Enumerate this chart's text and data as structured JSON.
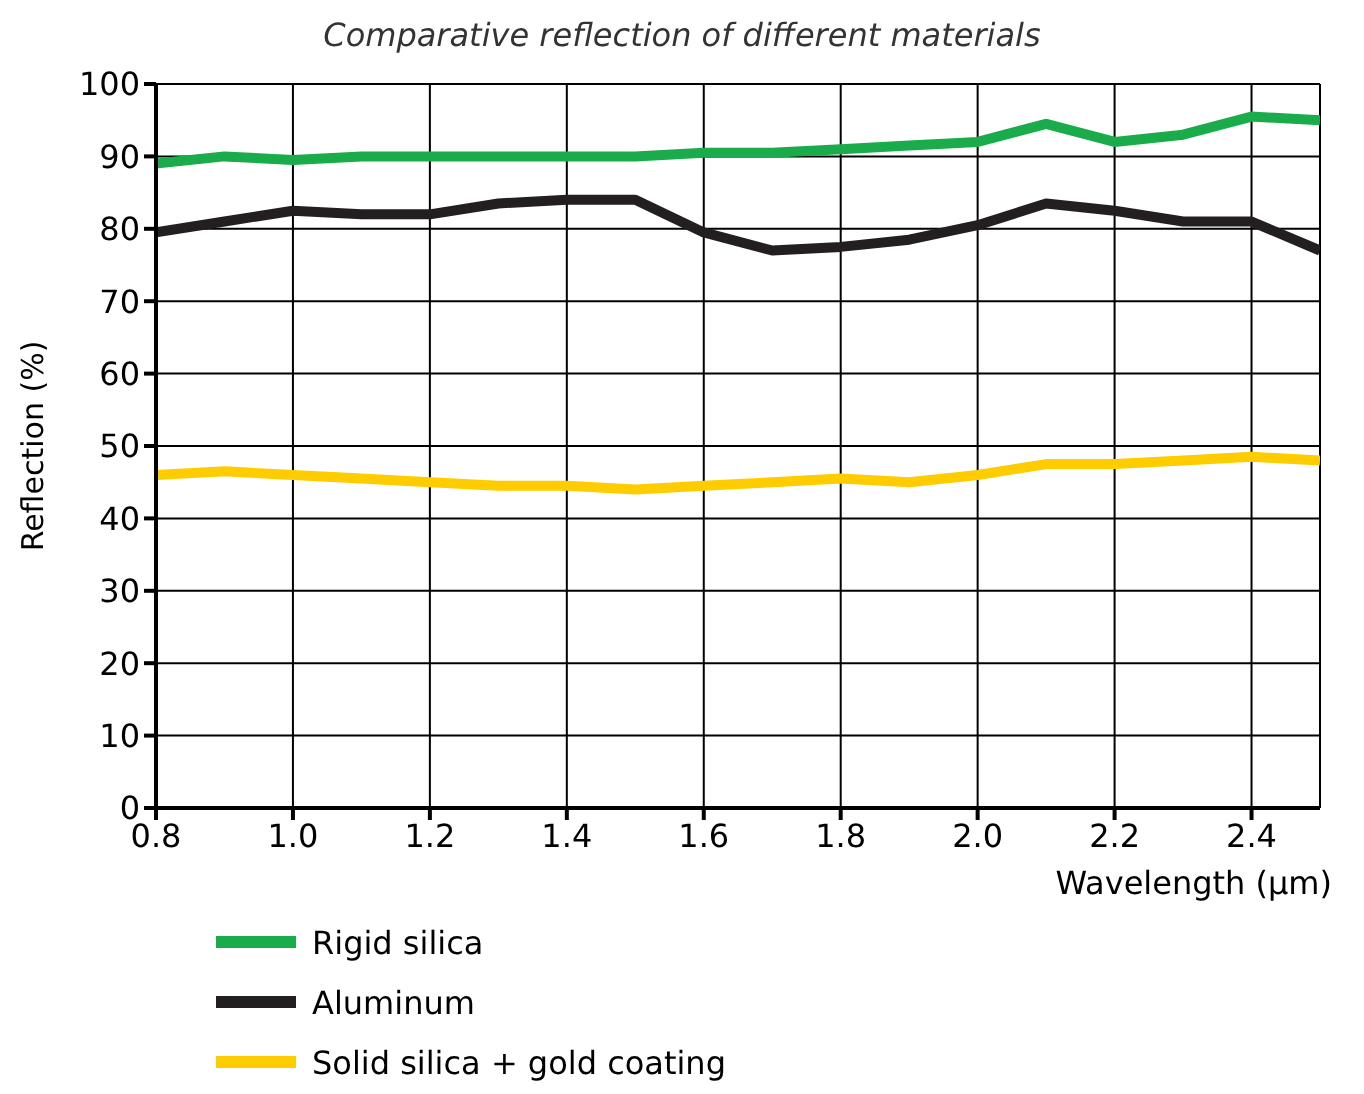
{
  "chart_data": {
    "type": "line",
    "title": "Comparative reflection of different materials",
    "xlabel": "Wavelength (µm)",
    "ylabel": "Reflection (%)",
    "x": [
      0.8,
      0.9,
      1.0,
      1.1,
      1.2,
      1.3,
      1.4,
      1.5,
      1.6,
      1.7,
      1.8,
      1.9,
      2.0,
      2.1,
      2.2,
      2.3,
      2.4,
      2.5
    ],
    "series": [
      {
        "name": "Rigid silica",
        "color": "#1aab4b",
        "values": [
          89,
          90,
          89.5,
          90,
          90,
          90,
          90,
          90,
          90.5,
          90.5,
          91,
          91.5,
          92,
          94.5,
          92,
          93,
          95.5,
          95
        ]
      },
      {
        "name": "Aluminum",
        "color": "#231f20",
        "values": [
          79.5,
          81,
          82.5,
          82,
          82,
          83.5,
          84,
          84,
          79.5,
          77,
          77.5,
          78.5,
          80.5,
          83.5,
          82.5,
          81,
          81,
          77
        ]
      },
      {
        "name": "Solid silica + gold coating",
        "color": "#ffcc00",
        "values": [
          46,
          46.5,
          46,
          45.5,
          45,
          44.5,
          44.5,
          44,
          44.5,
          45,
          45.5,
          45,
          46,
          47.5,
          47.5,
          48,
          48.5,
          48
        ]
      }
    ],
    "xlim": [
      0.8,
      2.5
    ],
    "xticks": [
      0.8,
      {
        "value": 1,
        "label": "1.0"
      },
      1.2,
      1.4,
      1.6,
      1.8,
      {
        "value": 2,
        "label": "2.0"
      },
      2.2,
      2.4
    ],
    "ylim": [
      0,
      100
    ],
    "yticks": [
      0,
      10,
      20,
      30,
      40,
      50,
      60,
      70,
      80,
      90,
      100
    ],
    "grid": true,
    "legend": "bottom left",
    "marker": "none",
    "line_style": "solid"
  }
}
